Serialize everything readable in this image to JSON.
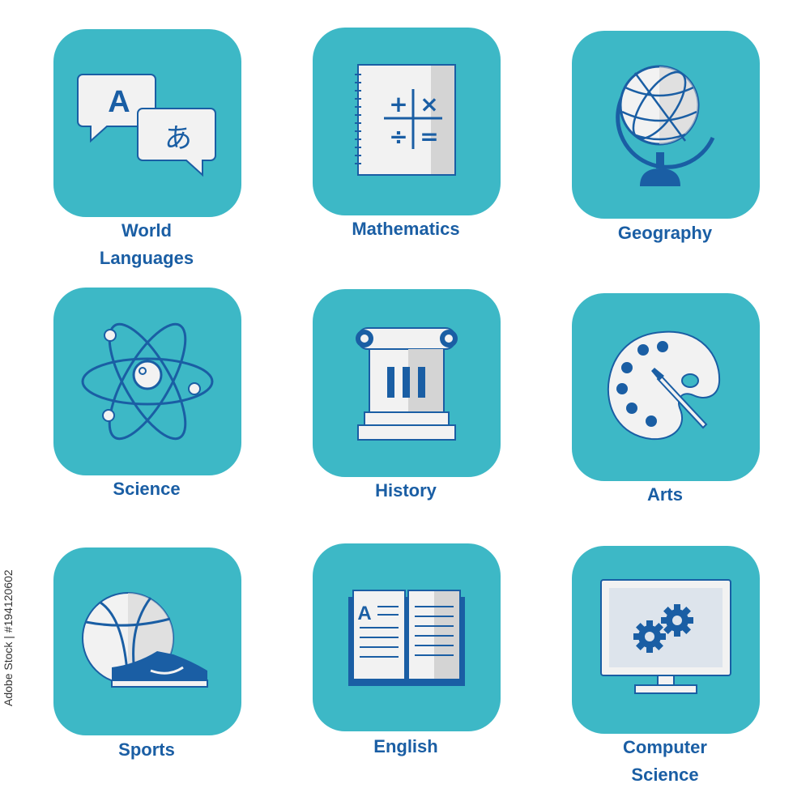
{
  "colors": {
    "tile": "#3db8c6",
    "ink": "#1a5ea4",
    "paper": "#f2f2f2",
    "shade": "#d4d4d4"
  },
  "subjects": [
    {
      "label_line1": "World",
      "label_line2": "Languages",
      "icon": "speech-bubbles-icon",
      "glyph_a": "A",
      "glyph_b": "あ"
    },
    {
      "label_line1": "Mathematics",
      "label_line2": "",
      "icon": "math-notebook-icon",
      "glyphs": [
        "+",
        "×",
        "÷",
        "="
      ]
    },
    {
      "label_line1": "Geography",
      "label_line2": "",
      "icon": "globe-icon"
    },
    {
      "label_line1": "Science",
      "label_line2": "",
      "icon": "atom-icon"
    },
    {
      "label_line1": "History",
      "label_line2": "",
      "icon": "column-icon"
    },
    {
      "label_line1": "Arts",
      "label_line2": "",
      "icon": "palette-icon"
    },
    {
      "label_line1": "Sports",
      "label_line2": "",
      "icon": "basketball-shoe-icon"
    },
    {
      "label_line1": "English",
      "label_line2": "",
      "icon": "open-book-icon",
      "glyph_a": "A"
    },
    {
      "label_line1": "Computer",
      "label_line2": "Science",
      "icon": "computer-gears-icon"
    }
  ],
  "watermark": {
    "stock_id": "Adobe Stock | #194120602"
  }
}
